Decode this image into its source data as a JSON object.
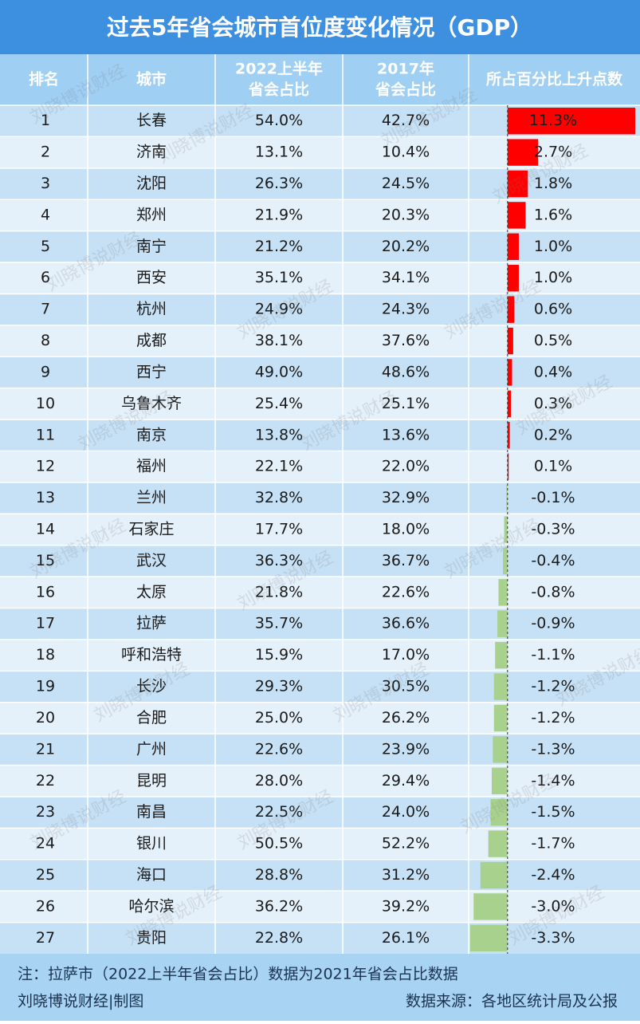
{
  "title": "过去5年省会城市首位度变化情况（GDP）",
  "table": {
    "header": [
      [
        "排名"
      ],
      [
        "城市"
      ],
      [
        "2022上半年",
        "省会占比"
      ],
      [
        "2017年",
        "省会占比"
      ],
      [
        "所占百分比上升点数"
      ]
    ],
    "positive_color": "#ff0000",
    "negative_color": "#a9d18e",
    "rows": [
      [
        1,
        "长春",
        "54.0%",
        "42.7%",
        {
          "value": 11.3,
          "label": "11.3%"
        }
      ],
      [
        2,
        "济南",
        "13.1%",
        "10.4%",
        {
          "value": 2.7,
          "label": "2.7%"
        }
      ],
      [
        3,
        "沈阳",
        "26.3%",
        "24.5%",
        {
          "value": 1.8,
          "label": "1.8%"
        }
      ],
      [
        4,
        "郑州",
        "21.9%",
        "20.3%",
        {
          "value": 1.6,
          "label": "1.6%"
        }
      ],
      [
        5,
        "南宁",
        "21.2%",
        "20.2%",
        {
          "value": 1.0,
          "label": "1.0%"
        }
      ],
      [
        6,
        "西安",
        "35.1%",
        "34.1%",
        {
          "value": 1.0,
          "label": "1.0%"
        }
      ],
      [
        7,
        "杭州",
        "24.9%",
        "24.3%",
        {
          "value": 0.6,
          "label": "0.6%"
        }
      ],
      [
        8,
        "成都",
        "38.1%",
        "37.6%",
        {
          "value": 0.5,
          "label": "0.5%"
        }
      ],
      [
        9,
        "西宁",
        "49.0%",
        "48.6%",
        {
          "value": 0.4,
          "label": "0.4%"
        }
      ],
      [
        10,
        "乌鲁木齐",
        "25.4%",
        "25.1%",
        {
          "value": 0.3,
          "label": "0.3%"
        }
      ],
      [
        11,
        "南京",
        "13.8%",
        "13.6%",
        {
          "value": 0.2,
          "label": "0.2%"
        }
      ],
      [
        12,
        "福州",
        "22.1%",
        "22.0%",
        {
          "value": 0.1,
          "label": "0.1%"
        }
      ],
      [
        13,
        "兰州",
        "32.8%",
        "32.9%",
        {
          "value": -0.1,
          "label": "-0.1%"
        }
      ],
      [
        14,
        "石家庄",
        "17.7%",
        "18.0%",
        {
          "value": -0.3,
          "label": "-0.3%"
        }
      ],
      [
        15,
        "武汉",
        "36.3%",
        "36.7%",
        {
          "value": -0.4,
          "label": "-0.4%"
        }
      ],
      [
        16,
        "太原",
        "21.8%",
        "22.6%",
        {
          "value": -0.8,
          "label": "-0.8%"
        }
      ],
      [
        17,
        "拉萨",
        "35.7%",
        "36.6%",
        {
          "value": -0.9,
          "label": "-0.9%"
        }
      ],
      [
        18,
        "呼和浩特",
        "15.9%",
        "17.0%",
        {
          "value": -1.1,
          "label": "-1.1%"
        }
      ],
      [
        19,
        "长沙",
        "29.3%",
        "30.5%",
        {
          "value": -1.2,
          "label": "-1.2%"
        }
      ],
      [
        20,
        "合肥",
        "25.0%",
        "26.2%",
        {
          "value": -1.2,
          "label": "-1.2%"
        }
      ],
      [
        21,
        "广州",
        "22.6%",
        "23.9%",
        {
          "value": -1.3,
          "label": "-1.3%"
        }
      ],
      [
        22,
        "昆明",
        "28.0%",
        "29.4%",
        {
          "value": -1.4,
          "label": "-1.4%"
        }
      ],
      [
        23,
        "南昌",
        "22.5%",
        "24.0%",
        {
          "value": -1.5,
          "label": "-1.5%"
        }
      ],
      [
        24,
        "银川",
        "50.5%",
        "52.2%",
        {
          "value": -1.7,
          "label": "-1.7%"
        }
      ],
      [
        25,
        "海口",
        "28.8%",
        "31.2%",
        {
          "value": -2.4,
          "label": "-2.4%"
        }
      ],
      [
        26,
        "哈尔滨",
        "36.2%",
        "39.2%",
        {
          "value": -3.0,
          "label": "-3.0%"
        }
      ],
      [
        27,
        "贵阳",
        "22.8%",
        "26.1%",
        {
          "value": -3.3,
          "label": "-3.3%"
        }
      ]
    ]
  },
  "footer": {
    "note": "注：拉萨市（2022上半年省会占比）数据为2021年省会占比数据",
    "credit": "刘晓博说财经|制图",
    "source": "数据来源：各地区统计局及公报"
  },
  "watermark": "刘晓博说财经"
}
